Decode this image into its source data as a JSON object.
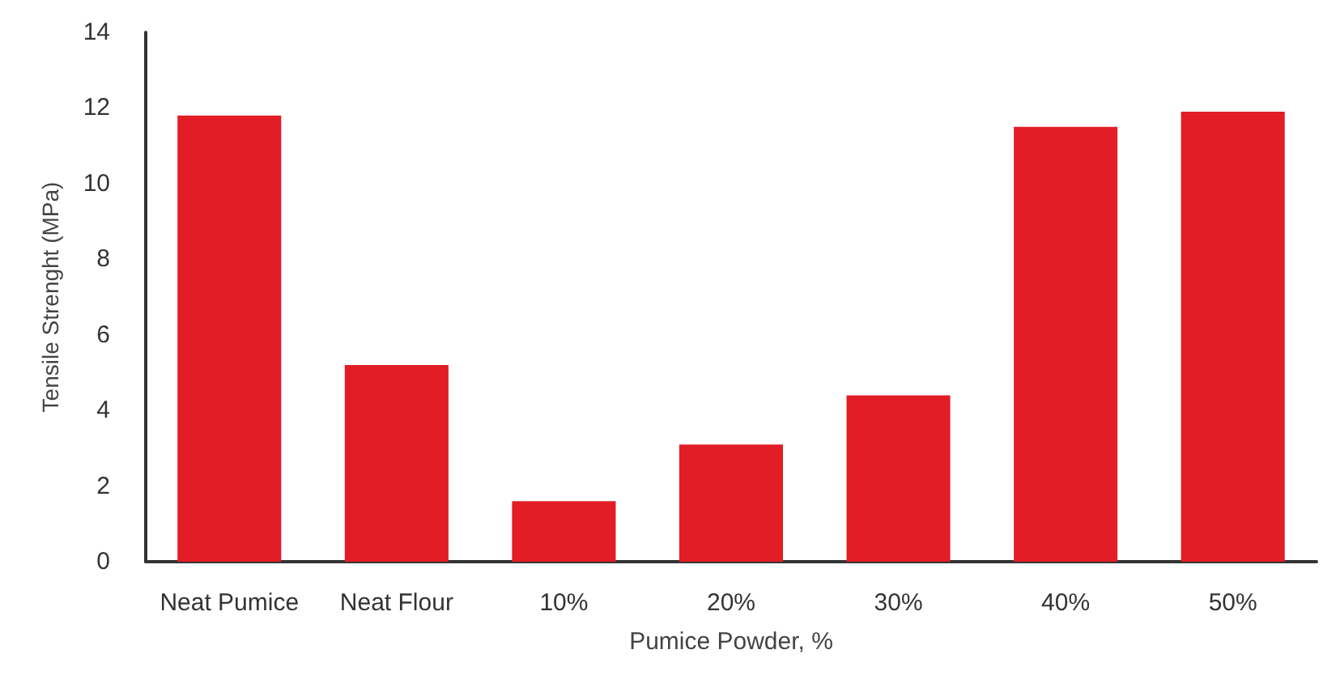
{
  "chart_data": {
    "type": "bar",
    "xlabel": "Pumice Powder, %",
    "ylabel": "Tensile Strenght (MPa)",
    "categories": [
      "Neat Pumice",
      "Neat Flour",
      "10%",
      "20%",
      "30%",
      "40%",
      "50%"
    ],
    "values": [
      11.8,
      5.2,
      1.6,
      3.1,
      4.4,
      11.5,
      11.9
    ],
    "color": "#e21d25",
    "ylim": [
      0,
      14
    ],
    "yticks": [
      0,
      2,
      4,
      6,
      8,
      10,
      12,
      14
    ],
    "grid": false
  }
}
